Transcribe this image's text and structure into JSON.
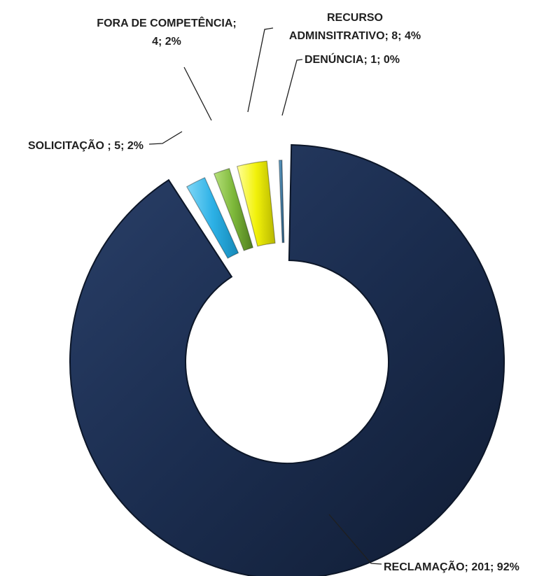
{
  "chart_data": {
    "type": "pie",
    "variant": "doughnut, exploded slices",
    "title": "",
    "legend": "none",
    "label_format": "category; value; percent",
    "series": [
      {
        "slices": [
          {
            "category": "RECLAMAÇÃO",
            "value": 201,
            "percent": "92%",
            "label": "RECLAMAÇÃO; 201; 92%",
            "color": "#1b2d4f"
          },
          {
            "category": "SOLICITAÇÃO",
            "value": 5,
            "percent": "2%",
            "label": "SOLICITAÇÃO ; 5; 2%",
            "color": "#2db1e6"
          },
          {
            "category": "FORA DE COMPETÊNCIA",
            "value": 4,
            "percent": "2%",
            "label": "FORA DE COMPETÊNCIA; 4; 2%",
            "color": "#7db83a"
          },
          {
            "category": "RECURSO ADMINSITRATIVO",
            "value": 8,
            "percent": "4%",
            "label": "RECURSO ADMINSITRATIVO; 8; 4%",
            "color": "#f2f20a"
          },
          {
            "category": "DENÚNCIA",
            "value": 1,
            "percent": "0%",
            "label": "DENÚNCIA; 1; 0%",
            "color": "#2e6f9e"
          }
        ]
      }
    ]
  }
}
